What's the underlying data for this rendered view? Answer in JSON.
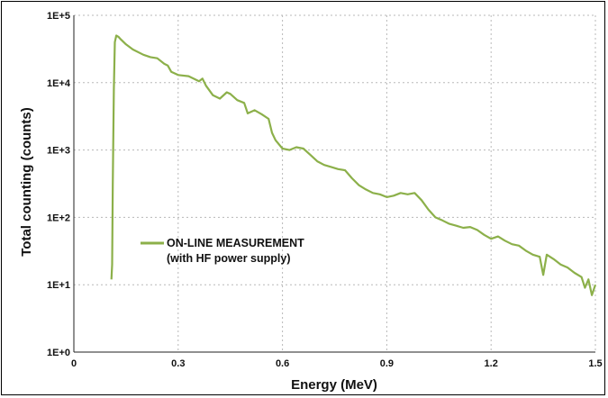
{
  "chart_data": {
    "type": "line",
    "title": "",
    "xlabel": "Energy (MeV)",
    "ylabel": "Total counting (counts)",
    "xlim": [
      0,
      1.5
    ],
    "ylim": [
      1,
      100000
    ],
    "y_scale": "log",
    "grid": true,
    "x_tick_values": [
      0,
      0.3,
      0.6,
      0.9,
      1.2,
      1.5
    ],
    "x_tick_labels": [
      "0",
      "0.3",
      "0.6",
      "0.9",
      "1.2",
      "1.5"
    ],
    "y_tick_values": [
      1,
      10,
      100,
      1000,
      10000,
      100000
    ],
    "y_tick_labels": [
      "1E+0",
      "1E+1",
      "1E+2",
      "1E+3",
      "1E+4",
      "1E+5"
    ],
    "legend_position": "left-center",
    "line_color": "#8cb04a",
    "series": [
      {
        "legend_line1": "ON-LINE MEASUREMENT",
        "legend_line2": "(with HF power supply)",
        "x": [
          0.108,
          0.11,
          0.112,
          0.115,
          0.118,
          0.122,
          0.128,
          0.135,
          0.15,
          0.17,
          0.2,
          0.22,
          0.24,
          0.26,
          0.27,
          0.28,
          0.3,
          0.33,
          0.36,
          0.37,
          0.38,
          0.4,
          0.42,
          0.44,
          0.45,
          0.47,
          0.49,
          0.5,
          0.52,
          0.54,
          0.56,
          0.57,
          0.58,
          0.6,
          0.62,
          0.64,
          0.66,
          0.68,
          0.7,
          0.72,
          0.74,
          0.76,
          0.78,
          0.8,
          0.82,
          0.84,
          0.86,
          0.88,
          0.9,
          0.92,
          0.94,
          0.96,
          0.98,
          1.0,
          1.02,
          1.04,
          1.06,
          1.08,
          1.1,
          1.12,
          1.14,
          1.16,
          1.18,
          1.2,
          1.22,
          1.24,
          1.26,
          1.28,
          1.3,
          1.32,
          1.34,
          1.35,
          1.36,
          1.38,
          1.4,
          1.42,
          1.44,
          1.46,
          1.47,
          1.48,
          1.49,
          1.5
        ],
        "y": [
          12,
          20,
          300,
          8000,
          40000,
          50000,
          48000,
          44000,
          37000,
          31000,
          26000,
          24000,
          23000,
          19000,
          18000,
          14500,
          13000,
          12500,
          10500,
          11500,
          9000,
          6500,
          5800,
          7200,
          6800,
          5500,
          5000,
          3500,
          3900,
          3400,
          2900,
          1800,
          1400,
          1050,
          1000,
          1100,
          1050,
          850,
          680,
          600,
          560,
          520,
          500,
          380,
          300,
          260,
          230,
          220,
          200,
          210,
          230,
          220,
          230,
          180,
          130,
          100,
          90,
          80,
          75,
          70,
          72,
          65,
          55,
          48,
          52,
          45,
          40,
          38,
          32,
          28,
          26,
          14,
          28,
          24,
          20,
          18,
          15,
          13,
          9,
          12,
          7,
          10
        ]
      }
    ]
  }
}
